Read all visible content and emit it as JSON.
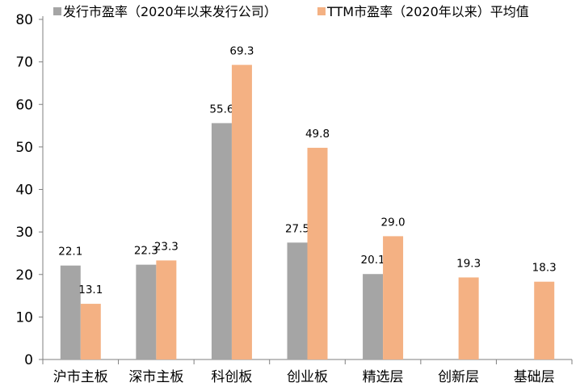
{
  "chart_data": {
    "type": "bar",
    "categories": [
      "沪市主板",
      "深市主板",
      "科创板",
      "创业板",
      "精选层",
      "创新层",
      "基础层"
    ],
    "series": [
      {
        "name": "发行市盈率（2020年以来发行公司）",
        "values": [
          22.1,
          22.3,
          55.6,
          27.5,
          20.1,
          null,
          null
        ],
        "color": "#A5A5A5"
      },
      {
        "name": "TTM市盈率（2020年以来）平均值",
        "values": [
          13.1,
          23.3,
          69.3,
          49.8,
          29.0,
          19.3,
          18.3
        ],
        "color": "#F4B183"
      }
    ],
    "data_labels": [
      [
        "22.1",
        "22.3",
        "55.6",
        "27.5",
        "20.1",
        "",
        ""
      ],
      [
        "13.1",
        "23.3",
        "69.3",
        "49.8",
        "29.0",
        "19.3",
        "18.3"
      ]
    ],
    "yticks": [
      "0",
      "10",
      "20",
      "30",
      "40",
      "50",
      "60",
      "70",
      "80"
    ],
    "ylim": [
      0,
      80
    ],
    "grid": false,
    "legend_position": "top"
  }
}
